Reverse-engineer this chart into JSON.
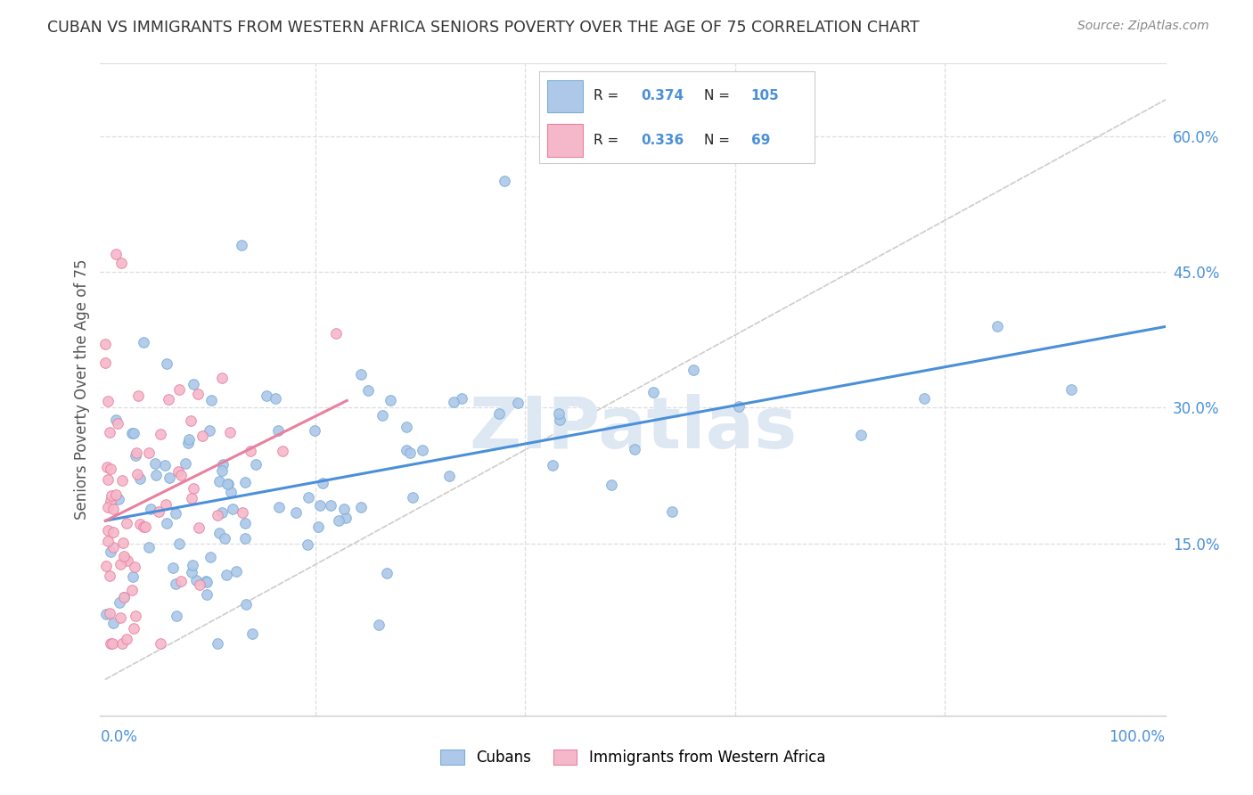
{
  "title": "CUBAN VS IMMIGRANTS FROM WESTERN AFRICA SENIORS POVERTY OVER THE AGE OF 75 CORRELATION CHART",
  "source": "Source: ZipAtlas.com",
  "ylabel": "Seniors Poverty Over the Age of 75",
  "cuban_color": "#adc8e8",
  "western_africa_color": "#f5b8cb",
  "cuban_edge_color": "#7aadd6",
  "western_africa_edge_color": "#e8809f",
  "trend_cuban_color": "#4a90d9",
  "trend_wa_color": "#e8809f",
  "diagonal_color": "#cccccc",
  "R_cuban": 0.374,
  "N_cuban": 105,
  "R_wa": 0.336,
  "N_wa": 69,
  "legend_labels": [
    "Cubans",
    "Immigrants from Western Africa"
  ],
  "background_color": "#ffffff",
  "grid_color": "#dddddd",
  "title_color": "#333333",
  "axis_color": "#4a90d9",
  "watermark_color": "#dde8f3",
  "yticks": [
    0.15,
    0.3,
    0.45,
    0.6
  ],
  "ytick_labels": [
    "15.0%",
    "30.0%",
    "45.0%",
    "60.0%"
  ],
  "xlim": [
    -0.005,
    1.01
  ],
  "ylim": [
    -0.04,
    0.68
  ]
}
